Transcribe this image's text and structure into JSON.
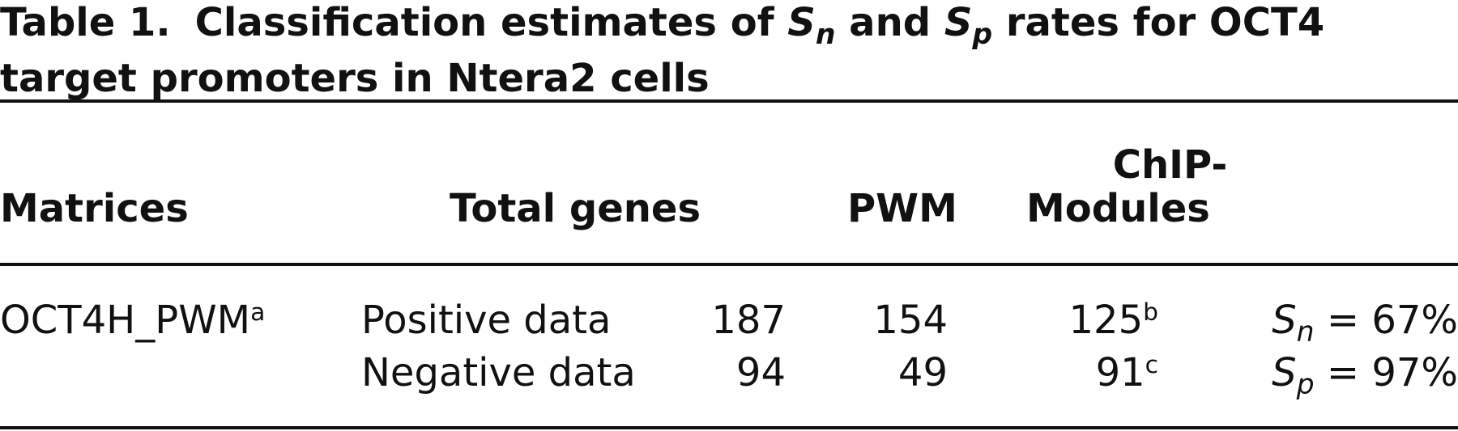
{
  "title": {
    "label": "Table 1.",
    "text_prefix": "Classification estimates of ",
    "S1": "S",
    "sub1": "n",
    "mid": " and ",
    "S2": "S",
    "sub2": "p",
    "text_line1_end": " rates for OCT4",
    "text_line2": "target promoters in Ntera2 cells"
  },
  "headers": {
    "matrices": "Matrices",
    "total_genes": "Total genes",
    "pwm": "PWM",
    "chip_line1": "ChIP-",
    "chip_line2": "Modules"
  },
  "rows": [
    {
      "matrix": "OCT4H_PWM",
      "matrix_sup": "a",
      "type": "Positive data",
      "total": "187",
      "pwm": "154",
      "chip": "125",
      "chip_sup": "b",
      "rate_S": "S",
      "rate_sub": "n",
      "rate_value": " = 67%"
    },
    {
      "matrix": "",
      "matrix_sup": "",
      "type": "Negative data",
      "total": "94",
      "pwm": "49",
      "chip": "91",
      "chip_sup": "c",
      "rate_S": "S",
      "rate_sub": "p",
      "rate_value": " = 97%"
    }
  ]
}
